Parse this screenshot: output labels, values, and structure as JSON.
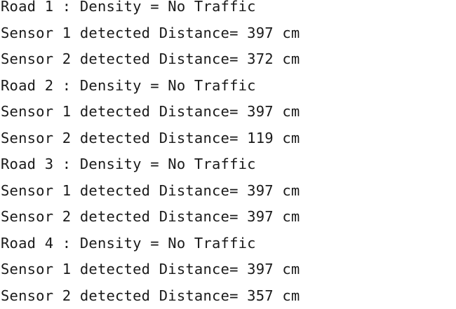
{
  "console": {
    "lines": [
      "Road 1 : Density = No Traffic",
      "Sensor 1 detected Distance= 397 cm",
      "Sensor 2 detected Distance= 372 cm",
      "Road 2 : Density = No Traffic",
      "Sensor 1 detected Distance= 397 cm",
      "Sensor 2 detected Distance= 119 cm",
      "Road 3 : Density = No Traffic",
      "Sensor 1 detected Distance= 397 cm",
      "Sensor 2 detected Distance= 397 cm",
      "Road 4 : Density = No Traffic",
      "Sensor 1 detected Distance= 397 cm",
      "Sensor 2 detected Distance= 357 cm"
    ]
  }
}
